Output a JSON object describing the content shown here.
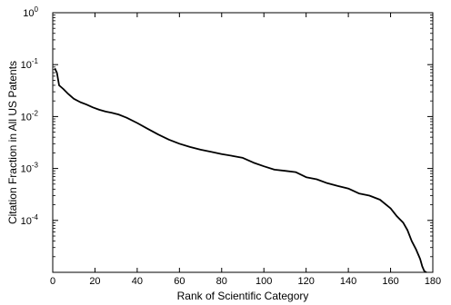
{
  "chart_data": {
    "type": "line",
    "title": "",
    "xlabel": "Rank of Scientific Category",
    "ylabel": "Citation Fraction in All US Patents",
    "xlim": [
      0,
      180
    ],
    "ylim": [
      1e-05,
      1
    ],
    "yscale": "log",
    "grid": false,
    "legend": "none",
    "x_ticks": [
      0,
      20,
      40,
      60,
      80,
      100,
      120,
      140,
      160,
      180
    ],
    "x_tick_labels": [
      "0",
      "20",
      "40",
      "60",
      "80",
      "100",
      "120",
      "140",
      "160",
      "180"
    ],
    "y_ticks": [
      0.0001,
      0.001,
      0.01,
      0.1,
      1
    ],
    "y_tick_labels": [
      {
        "base": "10",
        "exp": "-4"
      },
      {
        "base": "10",
        "exp": "-3"
      },
      {
        "base": "10",
        "exp": "-2"
      },
      {
        "base": "10",
        "exp": "-1"
      },
      {
        "base": "10",
        "exp": "0"
      }
    ],
    "series": [
      {
        "color": "#000000",
        "x": [
          1,
          2,
          3,
          5,
          7,
          10,
          13,
          16,
          19,
          22,
          25,
          28,
          31,
          35,
          40,
          45,
          50,
          55,
          60,
          65,
          70,
          75,
          80,
          85,
          90,
          95,
          100,
          105,
          110,
          115,
          120,
          125,
          130,
          135,
          140,
          145,
          150,
          155,
          160,
          163,
          166,
          168,
          170,
          172,
          174,
          175,
          176,
          177
        ],
        "y": [
          0.085,
          0.07,
          0.04,
          0.034,
          0.028,
          0.022,
          0.019,
          0.017,
          0.015,
          0.0135,
          0.0125,
          0.0118,
          0.011,
          0.0095,
          0.0075,
          0.0058,
          0.0045,
          0.0036,
          0.003,
          0.0026,
          0.0023,
          0.0021,
          0.0019,
          0.00175,
          0.0016,
          0.0013,
          0.0011,
          0.00095,
          0.0009,
          0.00085,
          0.00068,
          0.00062,
          0.00052,
          0.00046,
          0.00041,
          0.00033,
          0.0003,
          0.00025,
          0.00017,
          0.00012,
          9e-05,
          6.5e-05,
          4e-05,
          2.8e-05,
          1.8e-05,
          1.3e-05,
          1.05e-05,
          1e-05
        ]
      }
    ]
  }
}
